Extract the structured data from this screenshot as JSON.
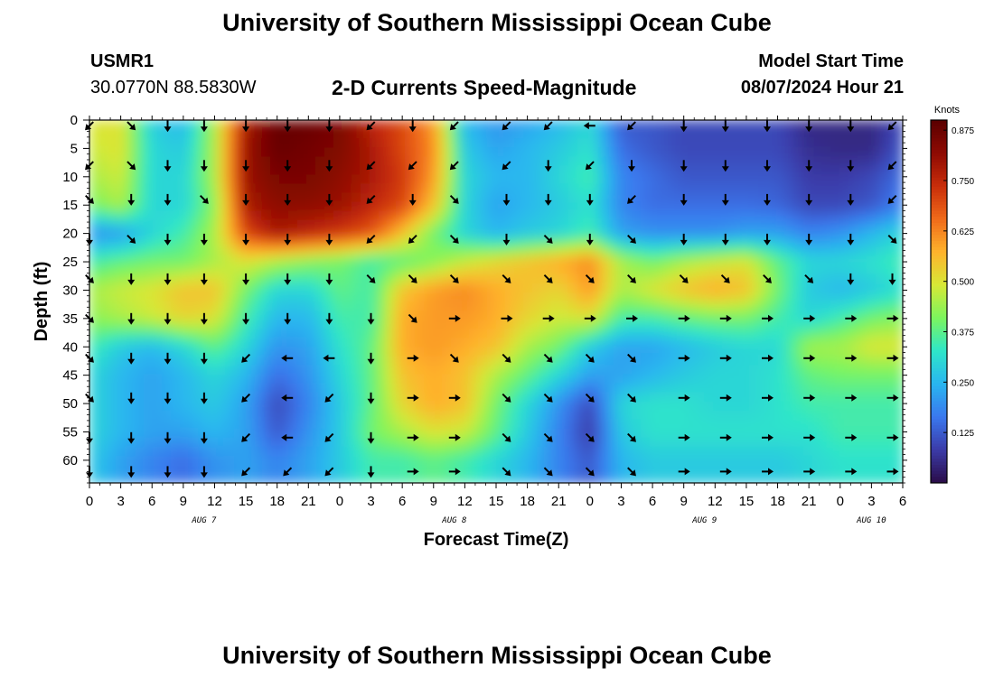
{
  "page": {
    "title": "University of Southern Mississippi Ocean Cube",
    "footer_title": "University of Southern Mississippi Ocean Cube",
    "station_id": "USMR1",
    "coordinates": "30.0770N  88.5830W",
    "model_start_label": "Model Start Time",
    "model_start_value": "08/07/2024 Hour 21"
  },
  "chart_data": {
    "type": "heatmap",
    "title": "2-D Currents Speed-Magnitude",
    "xlabel": "Forecast Time(Z)",
    "ylabel": "Depth (ft)",
    "x_ticks": [
      "0",
      "3",
      "6",
      "9",
      "12",
      "15",
      "18",
      "21",
      "0",
      "3",
      "6",
      "9",
      "12",
      "15",
      "18",
      "21",
      "0",
      "3",
      "6",
      "9",
      "12",
      "15",
      "18",
      "21",
      "0",
      "3",
      "6"
    ],
    "x_tick_hours": [
      0,
      3,
      6,
      9,
      12,
      15,
      18,
      21,
      24,
      27,
      30,
      33,
      36,
      39,
      42,
      45,
      48,
      51,
      54,
      57,
      60,
      63,
      66,
      69,
      72,
      75,
      78
    ],
    "date_labels": [
      {
        "text": "AUG 7",
        "hour": 11
      },
      {
        "text": "AUG 8",
        "hour": 35
      },
      {
        "text": "AUG 9",
        "hour": 59
      },
      {
        "text": "AUG 10",
        "hour": 75
      }
    ],
    "y_ticks": [
      "0",
      "5",
      "10",
      "15",
      "20",
      "25",
      "30",
      "35",
      "40",
      "45",
      "50",
      "55",
      "60"
    ],
    "y_tick_values": [
      0,
      5,
      10,
      15,
      20,
      25,
      30,
      35,
      40,
      45,
      50,
      55,
      60
    ],
    "x_range_hours": [
      0,
      78
    ],
    "y_range_ft": [
      0,
      64
    ],
    "colorbar": {
      "unit": "Knots",
      "labels": [
        "0.875",
        "0.750",
        "0.625",
        "0.500",
        "0.375",
        "0.250",
        "0.125"
      ],
      "values": [
        0.875,
        0.75,
        0.625,
        0.5,
        0.375,
        0.25,
        0.125
      ],
      "range": [
        0.0,
        0.9
      ],
      "colormap": [
        "#2a0c48",
        "#3b3ba8",
        "#3a78ee",
        "#29b5f0",
        "#2ee6c9",
        "#7cf55e",
        "#d7e836",
        "#ffb32c",
        "#f06a1a",
        "#c82d0a",
        "#8e0a03",
        "#5a0000"
      ]
    },
    "grid": {
      "rows": 13,
      "cols": 27,
      "row_depths": [
        0,
        5,
        10,
        15,
        20,
        25,
        30,
        35,
        40,
        45,
        50,
        55,
        60
      ],
      "col_hours": [
        0,
        3,
        6,
        9,
        12,
        15,
        18,
        21,
        24,
        27,
        30,
        33,
        36,
        39,
        42,
        45,
        48,
        51,
        54,
        57,
        60,
        63,
        66,
        69,
        72,
        75,
        78
      ],
      "speed": [
        [
          0.5,
          0.5,
          0.28,
          0.25,
          0.45,
          0.78,
          0.88,
          0.88,
          0.85,
          0.75,
          0.7,
          0.6,
          0.25,
          0.2,
          0.22,
          0.25,
          0.3,
          0.12,
          0.12,
          0.1,
          0.1,
          0.1,
          0.1,
          0.05,
          0.05,
          0.05,
          0.1
        ],
        [
          0.48,
          0.5,
          0.3,
          0.28,
          0.45,
          0.8,
          0.88,
          0.86,
          0.84,
          0.78,
          0.7,
          0.62,
          0.28,
          0.22,
          0.25,
          0.28,
          0.32,
          0.15,
          0.12,
          0.1,
          0.1,
          0.1,
          0.1,
          0.06,
          0.05,
          0.05,
          0.12
        ],
        [
          0.45,
          0.48,
          0.3,
          0.3,
          0.45,
          0.8,
          0.85,
          0.85,
          0.82,
          0.78,
          0.72,
          0.6,
          0.3,
          0.25,
          0.25,
          0.3,
          0.35,
          0.18,
          0.15,
          0.12,
          0.12,
          0.12,
          0.12,
          0.08,
          0.08,
          0.1,
          0.15
        ],
        [
          0.4,
          0.45,
          0.3,
          0.3,
          0.42,
          0.78,
          0.82,
          0.82,
          0.8,
          0.75,
          0.7,
          0.55,
          0.3,
          0.22,
          0.25,
          0.28,
          0.32,
          0.18,
          0.15,
          0.15,
          0.15,
          0.15,
          0.14,
          0.1,
          0.1,
          0.12,
          0.18
        ],
        [
          0.2,
          0.22,
          0.3,
          0.35,
          0.45,
          0.7,
          0.78,
          0.75,
          0.72,
          0.68,
          0.55,
          0.4,
          0.3,
          0.25,
          0.28,
          0.3,
          0.35,
          0.22,
          0.2,
          0.2,
          0.2,
          0.22,
          0.22,
          0.18,
          0.2,
          0.25,
          0.3
        ],
        [
          0.35,
          0.38,
          0.4,
          0.4,
          0.45,
          0.5,
          0.45,
          0.42,
          0.4,
          0.35,
          0.38,
          0.42,
          0.48,
          0.52,
          0.55,
          0.58,
          0.62,
          0.45,
          0.4,
          0.45,
          0.48,
          0.5,
          0.38,
          0.3,
          0.3,
          0.32,
          0.35
        ],
        [
          0.45,
          0.48,
          0.5,
          0.55,
          0.55,
          0.4,
          0.3,
          0.3,
          0.38,
          0.35,
          0.55,
          0.6,
          0.62,
          0.58,
          0.55,
          0.52,
          0.6,
          0.45,
          0.5,
          0.55,
          0.58,
          0.55,
          0.4,
          0.28,
          0.25,
          0.28,
          0.32
        ],
        [
          0.42,
          0.45,
          0.48,
          0.52,
          0.5,
          0.35,
          0.25,
          0.25,
          0.35,
          0.35,
          0.58,
          0.6,
          0.6,
          0.58,
          0.52,
          0.48,
          0.5,
          0.35,
          0.35,
          0.38,
          0.4,
          0.4,
          0.35,
          0.3,
          0.35,
          0.4,
          0.42
        ],
        [
          0.35,
          0.28,
          0.25,
          0.3,
          0.38,
          0.3,
          0.2,
          0.22,
          0.32,
          0.38,
          0.58,
          0.6,
          0.58,
          0.55,
          0.45,
          0.4,
          0.28,
          0.22,
          0.22,
          0.25,
          0.28,
          0.3,
          0.3,
          0.45,
          0.45,
          0.5,
          0.5
        ],
        [
          0.3,
          0.25,
          0.22,
          0.25,
          0.3,
          0.25,
          0.15,
          0.2,
          0.3,
          0.38,
          0.55,
          0.58,
          0.55,
          0.45,
          0.38,
          0.3,
          0.22,
          0.22,
          0.25,
          0.28,
          0.3,
          0.3,
          0.32,
          0.38,
          0.4,
          0.4,
          0.4
        ],
        [
          0.3,
          0.25,
          0.22,
          0.25,
          0.28,
          0.22,
          0.1,
          0.18,
          0.28,
          0.38,
          0.52,
          0.58,
          0.55,
          0.4,
          0.3,
          0.2,
          0.1,
          0.3,
          0.32,
          0.32,
          0.3,
          0.3,
          0.32,
          0.35,
          0.35,
          0.35,
          0.35
        ],
        [
          0.3,
          0.25,
          0.22,
          0.22,
          0.25,
          0.22,
          0.12,
          0.2,
          0.28,
          0.4,
          0.45,
          0.5,
          0.48,
          0.38,
          0.28,
          0.18,
          0.08,
          0.28,
          0.32,
          0.32,
          0.32,
          0.32,
          0.32,
          0.32,
          0.35,
          0.35,
          0.35
        ],
        [
          0.28,
          0.22,
          0.18,
          0.15,
          0.2,
          0.22,
          0.18,
          0.22,
          0.28,
          0.35,
          0.35,
          0.38,
          0.35,
          0.3,
          0.25,
          0.18,
          0.12,
          0.25,
          0.28,
          0.28,
          0.28,
          0.28,
          0.28,
          0.3,
          0.32,
          0.32,
          0.32
        ]
      ]
    },
    "arrows": {
      "rows_depth_ft": [
        1,
        8,
        14,
        21,
        28,
        35,
        42,
        49,
        56,
        62
      ],
      "cols_hour": [
        0,
        4,
        7.5,
        11,
        15,
        19,
        23,
        27,
        31,
        35,
        40,
        44,
        48,
        52,
        57,
        61,
        65,
        69,
        73,
        77
      ],
      "angles_deg": [
        [
          135,
          45,
          90,
          90,
          90,
          90,
          90,
          135,
          90,
          135,
          135,
          135,
          180,
          135,
          90,
          90,
          90,
          90,
          90,
          135
        ],
        [
          135,
          45,
          90,
          90,
          90,
          90,
          90,
          135,
          135,
          135,
          135,
          90,
          135,
          90,
          90,
          90,
          90,
          90,
          90,
          135
        ],
        [
          45,
          90,
          90,
          45,
          90,
          90,
          90,
          135,
          90,
          45,
          90,
          90,
          90,
          135,
          90,
          90,
          90,
          90,
          90,
          135
        ],
        [
          90,
          45,
          90,
          90,
          90,
          90,
          90,
          135,
          135,
          45,
          90,
          45,
          90,
          45,
          90,
          90,
          90,
          90,
          90,
          45
        ],
        [
          45,
          90,
          90,
          90,
          90,
          90,
          90,
          45,
          45,
          45,
          45,
          45,
          45,
          45,
          45,
          45,
          45,
          45,
          90,
          90
        ],
        [
          45,
          90,
          90,
          90,
          90,
          90,
          90,
          90,
          45,
          0,
          0,
          0,
          0,
          0,
          0,
          0,
          0,
          0,
          0,
          0
        ],
        [
          45,
          90,
          90,
          90,
          135,
          180,
          180,
          90,
          0,
          45,
          45,
          45,
          45,
          45,
          0,
          0,
          0,
          0,
          0,
          0
        ],
        [
          45,
          90,
          90,
          90,
          135,
          180,
          135,
          90,
          0,
          0,
          45,
          45,
          45,
          45,
          0,
          0,
          0,
          0,
          0,
          0
        ],
        [
          90,
          90,
          90,
          90,
          135,
          180,
          135,
          90,
          0,
          0,
          45,
          45,
          45,
          45,
          0,
          0,
          0,
          0,
          0,
          0
        ],
        [
          90,
          90,
          90,
          90,
          135,
          135,
          135,
          90,
          0,
          0,
          45,
          45,
          45,
          45,
          0,
          0,
          0,
          0,
          0,
          0
        ]
      ]
    }
  }
}
